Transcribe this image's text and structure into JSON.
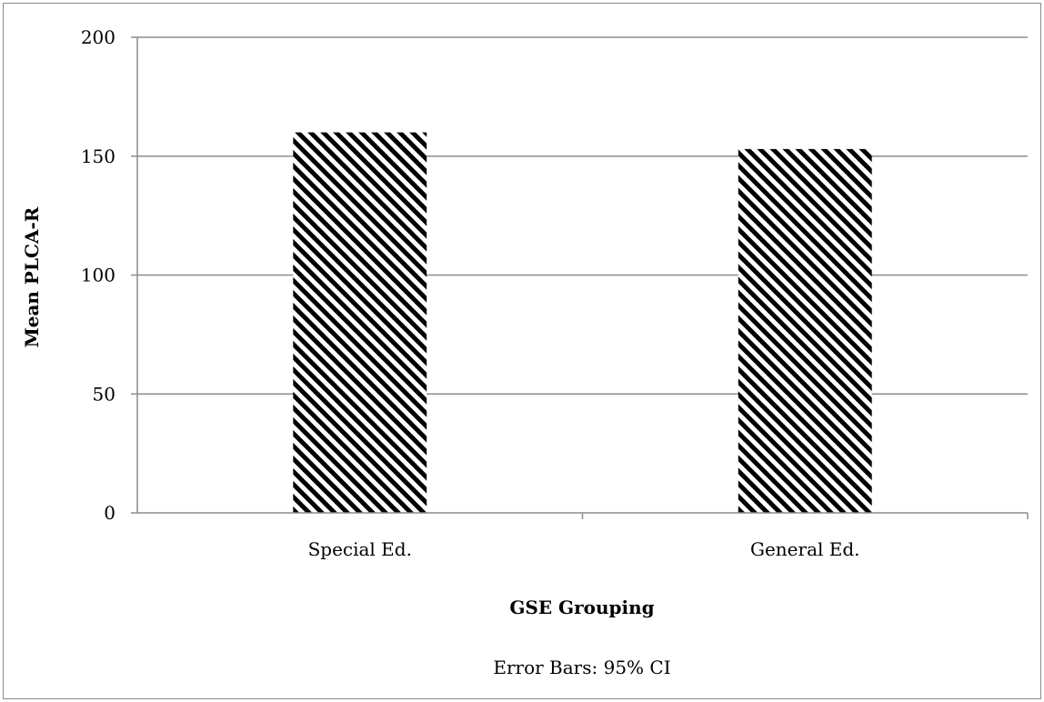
{
  "chart_data": {
    "type": "bar",
    "categories": [
      "Special Ed.",
      "General Ed."
    ],
    "values": [
      160,
      153
    ],
    "xlabel": "GSE Grouping",
    "ylabel": "Mean PLCA-R",
    "ylim": [
      0,
      200
    ],
    "yticks": [
      0,
      50,
      100,
      150,
      200
    ],
    "note": "Error Bars: 95% CI",
    "grid": true,
    "bar_fill": "diagonal-stripes",
    "colors": {
      "stripe": "#000000",
      "background": "#ffffff",
      "grid": "#8c8c8c"
    }
  }
}
